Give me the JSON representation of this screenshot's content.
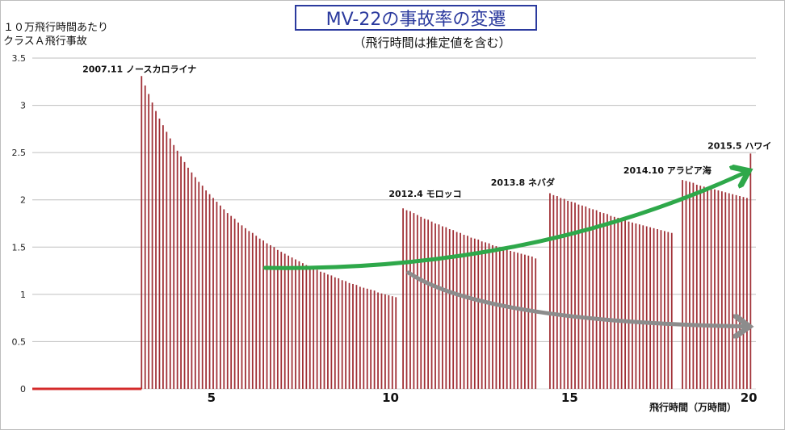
{
  "header": {
    "title": "MV-22の事故率の変遷",
    "subtitle": "（飛行時間は推定値を含む）",
    "ylabel_line1": "１０万飛行時間あたり",
    "ylabel_line2": "クラスＡ飛行事故"
  },
  "colors": {
    "bars": "#a02f35",
    "zero_line": "#d42a2a",
    "grid": "#bfbfbf",
    "up_arrow": "#2ea84a",
    "down_arrow": "#8c8c8c",
    "title": "#2b3a9e"
  },
  "chart_data": {
    "type": "bar",
    "title": "MV-22の事故率の変遷",
    "subtitle": "（飛行時間は推定値を含む）",
    "xlabel": "飛行時間（万時間）",
    "ylabel": "１０万飛行時間あたり クラスＡ飛行事故",
    "xlim": [
      0,
      20.2
    ],
    "ylim": [
      0,
      3.5
    ],
    "xticks": [
      5,
      10,
      15,
      20
    ],
    "yticks": [
      0,
      0.5,
      1,
      1.5,
      2,
      2.5,
      3,
      3.5
    ],
    "ytick_labels": [
      "0",
      "0.5",
      "1",
      "1.5",
      "2",
      "2.5",
      "3",
      "3.5"
    ],
    "grid": true,
    "zero_segment": {
      "x_start": 0,
      "x_end": 3.05,
      "value": 0
    },
    "bar_width_units": 0.04,
    "series": [
      {
        "x": [
          3.05,
          3.15,
          3.25,
          3.35,
          3.45,
          3.55,
          3.65,
          3.75,
          3.85,
          3.95,
          4.05,
          4.15,
          4.25,
          4.35,
          4.45,
          4.55,
          4.65,
          4.75,
          4.85,
          4.95,
          5.05,
          5.15,
          5.25,
          5.35,
          5.45,
          5.55,
          5.65,
          5.75,
          5.85,
          5.95,
          6.05,
          6.15,
          6.25,
          6.35,
          6.45,
          6.55,
          6.65,
          6.75,
          6.85,
          6.95,
          7.05,
          7.15,
          7.25,
          7.35,
          7.45,
          7.55,
          7.65,
          7.75,
          7.85,
          7.95,
          8.05,
          8.15,
          8.25,
          8.35,
          8.45,
          8.55,
          8.65,
          8.75,
          8.85,
          8.95,
          9.05,
          9.15,
          9.25,
          9.35,
          9.45,
          9.55,
          9.65,
          9.75,
          9.85,
          9.95,
          10.05,
          10.15
        ],
        "values": [
          3.31,
          3.21,
          3.12,
          3.03,
          2.94,
          2.86,
          2.79,
          2.72,
          2.65,
          2.58,
          2.52,
          2.46,
          2.4,
          2.34,
          2.29,
          2.24,
          2.19,
          2.15,
          2.1,
          2.06,
          2.02,
          1.98,
          1.94,
          1.9,
          1.86,
          1.83,
          1.8,
          1.76,
          1.73,
          1.7,
          1.67,
          1.65,
          1.62,
          1.59,
          1.57,
          1.54,
          1.52,
          1.5,
          1.47,
          1.45,
          1.43,
          1.41,
          1.39,
          1.37,
          1.35,
          1.33,
          1.31,
          1.29,
          1.28,
          1.26,
          1.24,
          1.23,
          1.21,
          1.2,
          1.18,
          1.17,
          1.15,
          1.14,
          1.12,
          1.11,
          1.1,
          1.08,
          1.07,
          1.06,
          1.05,
          1.04,
          1.02,
          1.01,
          1.0,
          0.99,
          0.98,
          0.97
        ]
      },
      {
        "x": [
          10.35,
          10.45,
          10.55,
          10.65,
          10.75,
          10.85,
          10.95,
          11.05,
          11.15,
          11.25,
          11.35,
          11.45,
          11.55,
          11.65,
          11.75,
          11.85,
          11.95,
          12.05,
          12.15,
          12.25,
          12.35,
          12.45,
          12.55,
          12.65,
          12.75,
          12.85,
          12.95,
          13.05,
          13.15,
          13.25,
          13.35,
          13.45,
          13.55,
          13.65,
          13.75,
          13.85,
          13.95,
          14.05
        ],
        "values": [
          1.91,
          1.89,
          1.88,
          1.86,
          1.84,
          1.82,
          1.8,
          1.79,
          1.77,
          1.75,
          1.74,
          1.72,
          1.71,
          1.69,
          1.68,
          1.66,
          1.65,
          1.63,
          1.62,
          1.6,
          1.59,
          1.58,
          1.56,
          1.55,
          1.54,
          1.52,
          1.51,
          1.5,
          1.49,
          1.48,
          1.46,
          1.45,
          1.44,
          1.43,
          1.42,
          1.41,
          1.4,
          1.38
        ]
      },
      {
        "x": [
          14.45,
          14.55,
          14.65,
          14.75,
          14.85,
          14.95,
          15.05,
          15.15,
          15.25,
          15.35,
          15.45,
          15.55,
          15.65,
          15.75,
          15.85,
          15.95,
          16.05,
          16.15,
          16.25,
          16.35,
          16.45,
          16.55,
          16.65,
          16.75,
          16.85,
          16.95,
          17.05,
          17.15,
          17.25,
          17.35,
          17.45,
          17.55,
          17.65,
          17.75,
          17.85
        ],
        "values": [
          2.07,
          2.05,
          2.04,
          2.02,
          2.01,
          1.99,
          1.98,
          1.97,
          1.95,
          1.94,
          1.93,
          1.91,
          1.9,
          1.89,
          1.87,
          1.86,
          1.85,
          1.83,
          1.82,
          1.81,
          1.8,
          1.79,
          1.77,
          1.76,
          1.75,
          1.74,
          1.73,
          1.72,
          1.71,
          1.7,
          1.69,
          1.68,
          1.67,
          1.66,
          1.65
        ]
      },
      {
        "x": [
          18.15,
          18.25,
          18.35,
          18.45,
          18.55,
          18.65,
          18.75,
          18.85,
          18.95,
          19.05,
          19.15,
          19.25,
          19.35,
          19.45,
          19.55,
          19.65,
          19.75,
          19.85,
          19.95
        ],
        "values": [
          2.21,
          2.2,
          2.19,
          2.18,
          2.16,
          2.15,
          2.14,
          2.13,
          2.12,
          2.11,
          2.1,
          2.09,
          2.08,
          2.07,
          2.06,
          2.05,
          2.04,
          2.03,
          2.02
        ]
      },
      {
        "x": [
          20.05
        ],
        "values": [
          2.49
        ]
      }
    ],
    "annotations": [
      {
        "text": "2007.11 ノースカロライナ",
        "x": 1.4,
        "y": 3.35
      },
      {
        "text": "2012.4 モロッコ",
        "x": 9.95,
        "y": 2.03
      },
      {
        "text": "2013.8 ネバダ",
        "x": 12.8,
        "y": 2.15
      },
      {
        "text": "2014.10 アラビア海",
        "x": 16.5,
        "y": 2.28
      },
      {
        "text": "2015.5 ハワイ",
        "x": 18.85,
        "y": 2.54
      }
    ],
    "trend_arrows": [
      {
        "name": "up",
        "from": [
          6.5,
          1.28
        ],
        "to": [
          19.9,
          2.29
        ]
      },
      {
        "name": "down",
        "from": [
          10.5,
          1.23
        ],
        "to": [
          19.9,
          0.66
        ]
      }
    ]
  }
}
